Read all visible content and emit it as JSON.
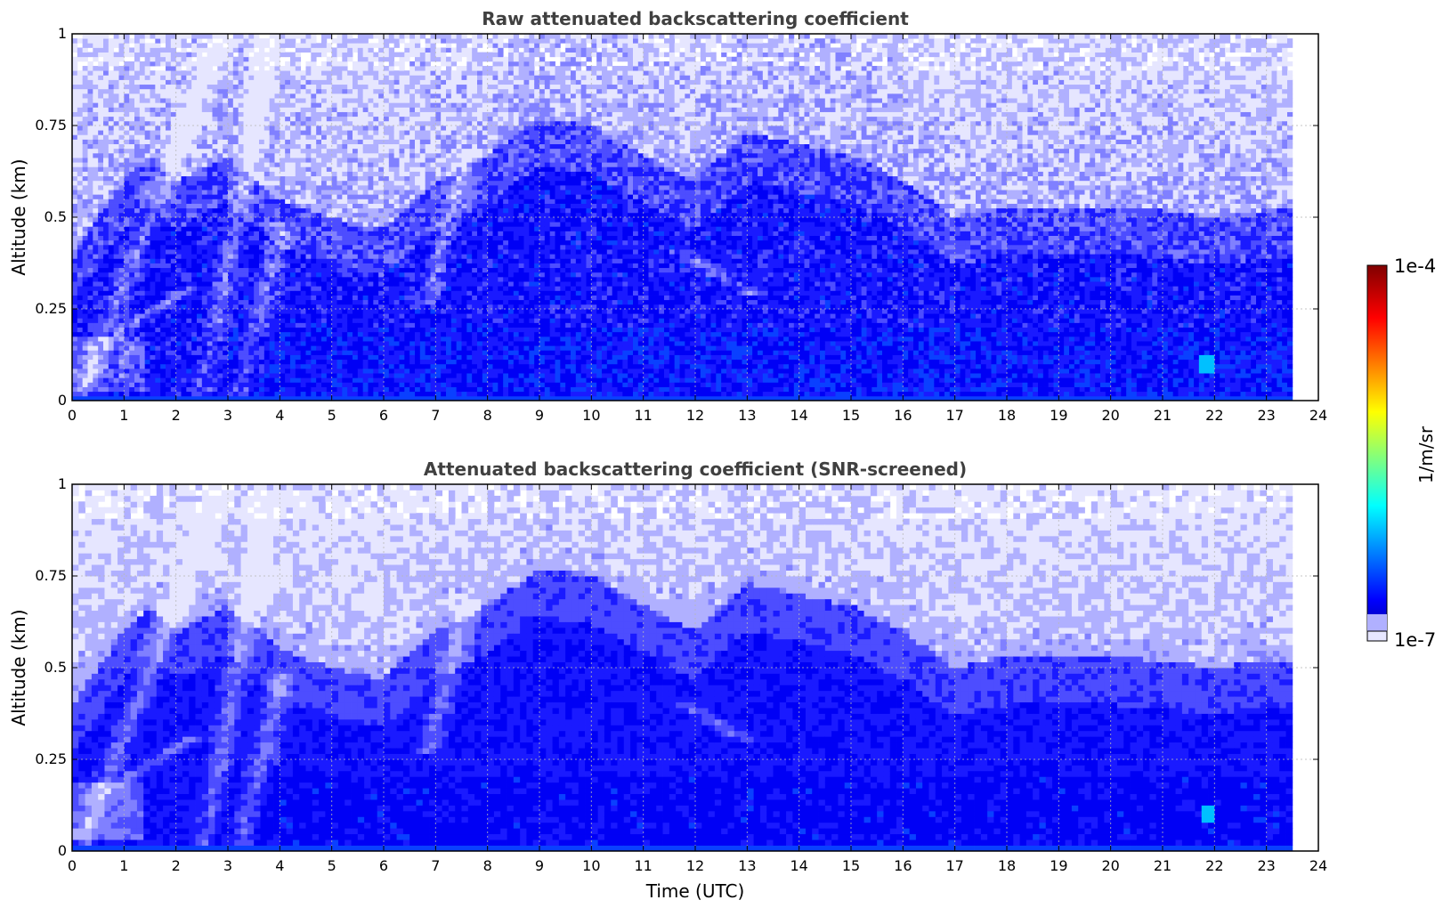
{
  "chart_data": [
    {
      "type": "heatmap",
      "title": "Raw attenuated backscattering coefficient",
      "xlabel": "",
      "ylabel": "Altitude (km)",
      "xlim": [
        0,
        24
      ],
      "ylim": [
        0,
        1
      ],
      "x_ticks": [
        "0",
        "1",
        "2",
        "3",
        "4",
        "5",
        "6",
        "7",
        "8",
        "9",
        "10",
        "11",
        "12",
        "13",
        "14",
        "15",
        "16",
        "17",
        "18",
        "19",
        "20",
        "21",
        "22",
        "23",
        "24"
      ],
      "y_ticks": [
        "0",
        "0.25",
        "0.5",
        "0.75",
        "1"
      ],
      "data_end_time": 23.5,
      "grid": true,
      "screened": false
    },
    {
      "type": "heatmap",
      "title": "Attenuated backscattering coefficient (SNR-screened)",
      "xlabel": "Time (UTC)",
      "ylabel": "Altitude (km)",
      "xlim": [
        0,
        24
      ],
      "ylim": [
        0,
        1
      ],
      "x_ticks": [
        "0",
        "1",
        "2",
        "3",
        "4",
        "5",
        "6",
        "7",
        "8",
        "9",
        "10",
        "11",
        "12",
        "13",
        "14",
        "15",
        "16",
        "17",
        "18",
        "19",
        "20",
        "21",
        "22",
        "23",
        "24"
      ],
      "y_ticks": [
        "0",
        "0.25",
        "0.5",
        "0.75",
        "1"
      ],
      "data_end_time": 23.5,
      "grid": true,
      "screened": true
    }
  ],
  "colorbar": {
    "label": "1/m/sr",
    "max_label": "1e-4",
    "min_label": "1e-7",
    "colormap": "jet",
    "scale": "log"
  },
  "colors": {
    "title": "#404040",
    "low": "#e6e6ff",
    "mid": "#1a1aff",
    "dense": "#0000f0"
  }
}
